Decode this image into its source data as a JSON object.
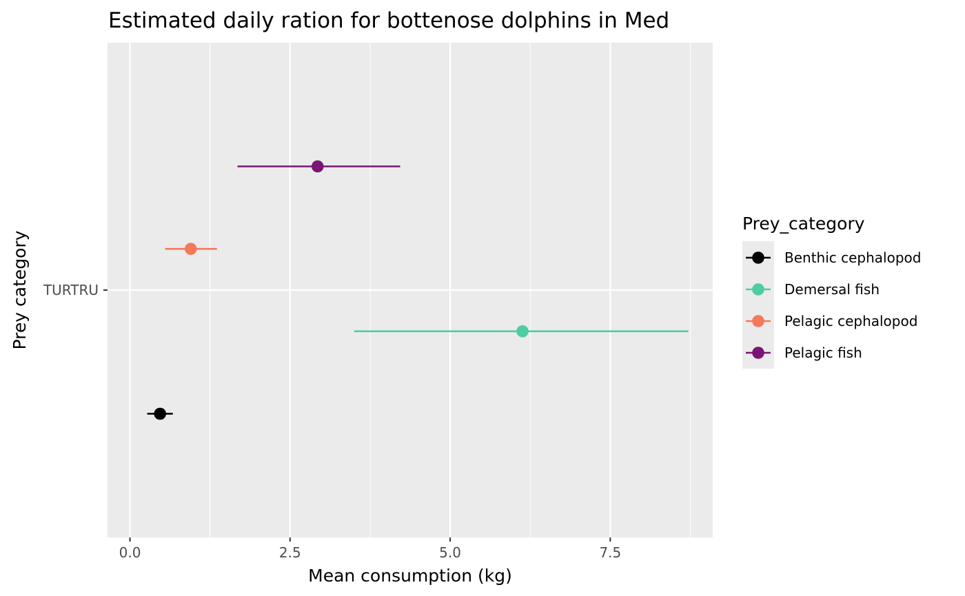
{
  "chart_data": {
    "type": "scatter",
    "title": "Estimated daily ration for bottenose dolphins in Med",
    "xlabel": "Mean consumption (kg)",
    "ylabel": "Prey category",
    "xlim": [
      -0.35,
      9.1
    ],
    "x_ticks": [
      0.0,
      2.5,
      5.0,
      7.5
    ],
    "x_tick_labels": [
      "0.0",
      "2.5",
      "5.0",
      "7.5"
    ],
    "categories": [
      "TURTRU"
    ],
    "grid": true,
    "legend": {
      "title": "Prey_category",
      "position": "right"
    },
    "series": [
      {
        "name": "Benthic cephalopod",
        "color": "#000000",
        "category": "TURTRU",
        "dodge": -0.3,
        "x": 0.47,
        "xmin": 0.27,
        "xmax": 0.67
      },
      {
        "name": "Demersal fish",
        "color": "#4ecca3",
        "category": "TURTRU",
        "dodge": -0.1,
        "x": 6.13,
        "xmin": 3.5,
        "xmax": 8.72
      },
      {
        "name": "Pelagic cephalopod",
        "color": "#f4785a",
        "category": "TURTRU",
        "dodge": 0.1,
        "x": 0.95,
        "xmin": 0.55,
        "xmax": 1.36
      },
      {
        "name": "Pelagic fish",
        "color": "#7b1474",
        "category": "TURTRU",
        "dodge": 0.3,
        "x": 2.93,
        "xmin": 1.68,
        "xmax": 4.22
      }
    ]
  }
}
